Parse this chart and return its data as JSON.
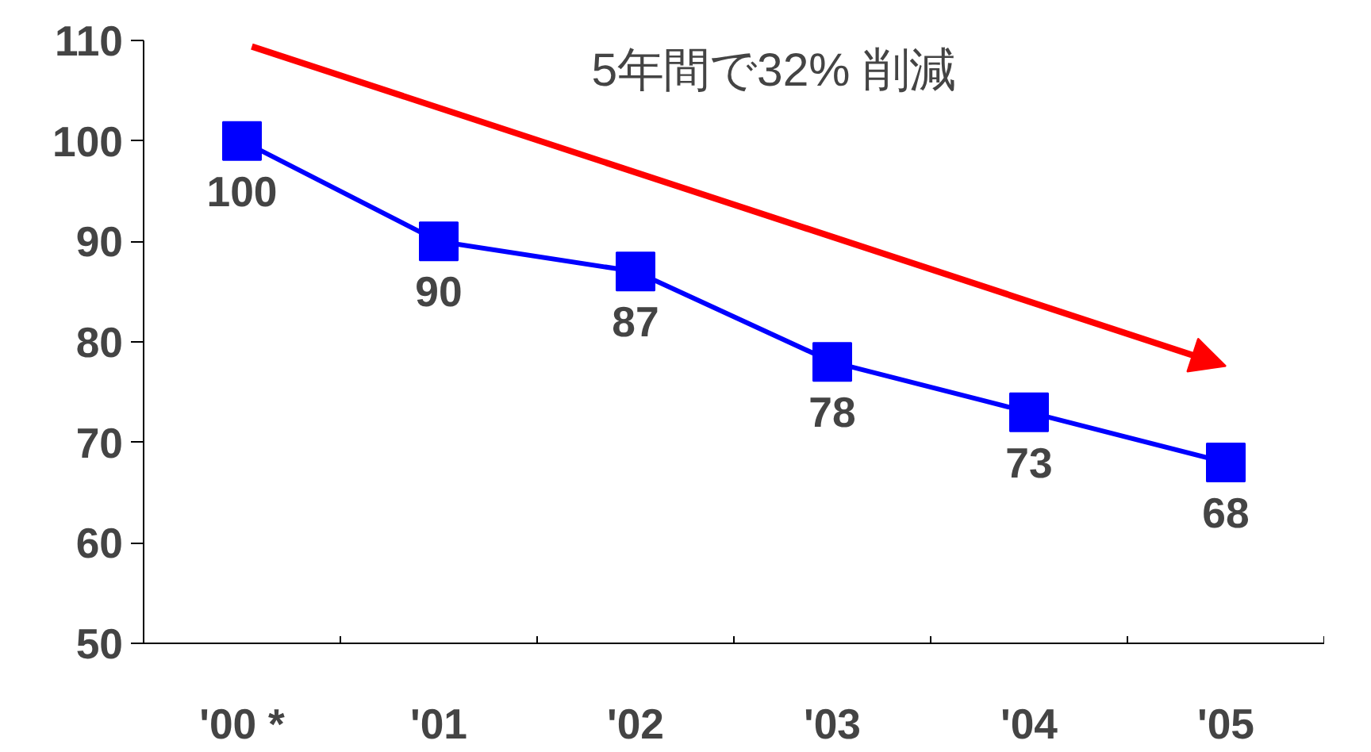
{
  "chart_data": {
    "type": "line",
    "categories": [
      "'00 *",
      "'01",
      "'02",
      "'03",
      "'04",
      "'05"
    ],
    "series": [
      {
        "color": "#0000ff",
        "values": [
          100,
          90,
          87,
          78,
          73,
          68
        ]
      }
    ],
    "ylim": [
      50,
      110
    ],
    "yticks": [
      50,
      60,
      70,
      80,
      90,
      100,
      110
    ],
    "grid": false,
    "marker": "square",
    "line_style": "solid",
    "data_labels": true,
    "annotations": [
      "5年間で32% 削減"
    ]
  }
}
